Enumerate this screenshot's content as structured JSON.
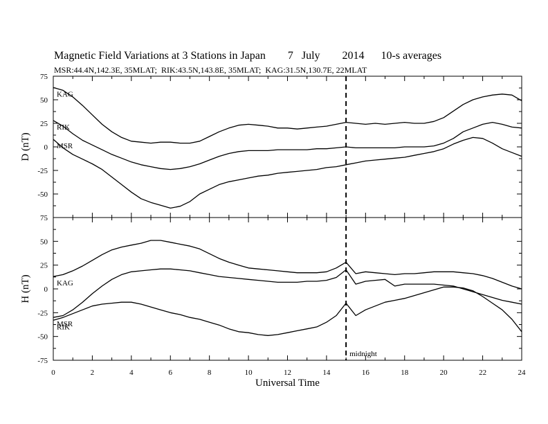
{
  "chart_data": {
    "type": "line",
    "title": "Magnetic Field Variations at 3 Stations in Japan        7   July        2014      10-s averages",
    "subtitle": "MSR:44.4N,142.3E, 35MLAT;  RIK:43.5N,143.8E, 35MLAT;  KAG:31.5N,130.7E, 22MLAT",
    "xlabel": "Universal Time",
    "xlim": [
      0,
      24
    ],
    "x_ticks": [
      "0",
      "2",
      "4",
      "6",
      "8",
      "10",
      "12",
      "14",
      "16",
      "18",
      "20",
      "22",
      "24"
    ],
    "x_tick_values": [
      0,
      2,
      4,
      6,
      8,
      10,
      12,
      14,
      16,
      18,
      20,
      22,
      24
    ],
    "annotation": {
      "text": "midnight",
      "x": 15
    },
    "grid": false,
    "panels": [
      {
        "ylabel": "D (nT)",
        "ylim": [
          -75,
          75
        ],
        "y_ticks": [
          "75",
          "50",
          "25",
          "0",
          "-25",
          "-50",
          "-75"
        ],
        "y_tick_values": [
          75,
          50,
          25,
          0,
          -25,
          -50,
          -75
        ],
        "series": [
          {
            "name": "KAG",
            "x": [
              0,
              0.5,
              1,
              1.5,
              2,
              2.5,
              3,
              3.5,
              4,
              4.5,
              5,
              5.5,
              6,
              6.5,
              7,
              7.5,
              8,
              8.5,
              9,
              9.5,
              10,
              10.5,
              11,
              11.5,
              12,
              12.5,
              13,
              13.5,
              14,
              14.5,
              15,
              15.5,
              16,
              16.5,
              17,
              17.5,
              18,
              18.5,
              19,
              19.5,
              20,
              20.5,
              21,
              21.5,
              22,
              22.5,
              23,
              23.5,
              24
            ],
            "y": [
              63,
              60,
              53,
              44,
              34,
              24,
              16,
              10,
              6,
              5,
              4,
              5,
              5,
              4,
              4,
              6,
              11,
              16,
              20,
              23,
              24,
              23,
              22,
              20,
              20,
              19,
              20,
              21,
              22,
              24,
              26,
              25,
              24,
              25,
              24,
              25,
              26,
              25,
              25,
              27,
              31,
              38,
              45,
              50,
              53,
              55,
              56,
              55,
              49
            ]
          },
          {
            "name": "RIK",
            "x": [
              0,
              0.5,
              1,
              1.5,
              2,
              2.5,
              3,
              3.5,
              4,
              4.5,
              5,
              5.5,
              6,
              6.5,
              7,
              7.5,
              8,
              8.5,
              9,
              9.5,
              10,
              10.5,
              11,
              11.5,
              12,
              12.5,
              13,
              13.5,
              14,
              14.5,
              15,
              15.5,
              16,
              16.5,
              17,
              17.5,
              18,
              18.5,
              19,
              19.5,
              20,
              20.5,
              21,
              21.5,
              22,
              22.5,
              23,
              23.5,
              24
            ],
            "y": [
              28,
              22,
              14,
              7,
              2,
              -3,
              -8,
              -12,
              -16,
              -19,
              -21,
              -23,
              -24,
              -23,
              -21,
              -18,
              -14,
              -10,
              -7,
              -5,
              -4,
              -4,
              -4,
              -3,
              -3,
              -3,
              -3,
              -2,
              -2,
              -1,
              0,
              -1,
              -1,
              -1,
              -1,
              -1,
              0,
              0,
              0,
              1,
              4,
              9,
              16,
              20,
              24,
              26,
              24,
              21,
              20
            ]
          },
          {
            "name": "MSR",
            "x": [
              0,
              0.5,
              1,
              1.5,
              2,
              2.5,
              3,
              3.5,
              4,
              4.5,
              5,
              5.5,
              6,
              6.5,
              7,
              7.5,
              8,
              8.5,
              9,
              9.5,
              10,
              10.5,
              11,
              11.5,
              12,
              12.5,
              13,
              13.5,
              14,
              14.5,
              15,
              15.5,
              16,
              16.5,
              17,
              17.5,
              18,
              18.5,
              19,
              19.5,
              20,
              20.5,
              21,
              21.5,
              22,
              22.5,
              23,
              23.5,
              24
            ],
            "y": [
              8,
              -1,
              -8,
              -13,
              -18,
              -24,
              -32,
              -40,
              -48,
              -55,
              -59,
              -62,
              -65,
              -63,
              -58,
              -50,
              -45,
              -40,
              -37,
              -35,
              -33,
              -31,
              -30,
              -28,
              -27,
              -26,
              -25,
              -24,
              -22,
              -21,
              -19,
              -17,
              -15,
              -14,
              -13,
              -12,
              -11,
              -9,
              -7,
              -5,
              -2,
              3,
              7,
              10,
              9,
              4,
              -2,
              -6,
              -10
            ]
          }
        ]
      },
      {
        "ylabel": "H (nT)",
        "ylim": [
          -75,
          75
        ],
        "y_ticks": [
          "75",
          "50",
          "25",
          "0",
          "-25",
          "-50",
          "-75"
        ],
        "y_tick_values": [
          75,
          50,
          25,
          0,
          -25,
          -50,
          -75
        ],
        "series": [
          {
            "name": "KAG",
            "x": [
              0,
              0.5,
              1,
              1.5,
              2,
              2.5,
              3,
              3.5,
              4,
              4.5,
              5,
              5.5,
              6,
              6.5,
              7,
              7.5,
              8,
              8.5,
              9,
              9.5,
              10,
              10.5,
              11,
              11.5,
              12,
              12.5,
              13,
              13.5,
              14,
              14.5,
              15,
              15.5,
              16,
              16.5,
              17,
              17.5,
              18,
              18.5,
              19,
              19.5,
              20,
              20.5,
              21,
              21.5,
              22,
              22.5,
              23,
              23.5,
              24
            ],
            "y": [
              13,
              15,
              19,
              24,
              30,
              36,
              41,
              44,
              46,
              48,
              51,
              51,
              49,
              47,
              45,
              42,
              37,
              32,
              28,
              25,
              22,
              21,
              20,
              19,
              18,
              17,
              17,
              17,
              18,
              22,
              28,
              16,
              18,
              17,
              16,
              15,
              16,
              16,
              17,
              18,
              18,
              18,
              17,
              16,
              14,
              11,
              7,
              3,
              0
            ]
          },
          {
            "name": "MSR",
            "x": [
              0,
              0.5,
              1,
              1.5,
              2,
              2.5,
              3,
              3.5,
              4,
              4.5,
              5,
              5.5,
              6,
              6.5,
              7,
              7.5,
              8,
              8.5,
              9,
              9.5,
              10,
              10.5,
              11,
              11.5,
              12,
              12.5,
              13,
              13.5,
              14,
              14.5,
              15,
              15.5,
              16,
              16.5,
              17,
              17.5,
              18,
              18.5,
              19,
              19.5,
              20,
              20.5,
              21,
              21.5,
              22,
              22.5,
              23,
              23.5,
              24
            ],
            "y": [
              -30,
              -28,
              -22,
              -14,
              -5,
              3,
              10,
              15,
              18,
              19,
              20,
              21,
              21,
              20,
              19,
              17,
              15,
              13,
              12,
              11,
              10,
              9,
              8,
              7,
              7,
              7,
              8,
              8,
              9,
              12,
              20,
              5,
              8,
              9,
              10,
              3,
              5,
              5,
              5,
              5,
              4,
              3,
              0,
              -3,
              -6,
              -9,
              -12,
              -14,
              -16
            ]
          },
          {
            "name": "RIK",
            "x": [
              0,
              0.5,
              1,
              1.5,
              2,
              2.5,
              3,
              3.5,
              4,
              4.5,
              5,
              5.5,
              6,
              6.5,
              7,
              7.5,
              8,
              8.5,
              9,
              9.5,
              10,
              10.5,
              11,
              11.5,
              12,
              12.5,
              13,
              13.5,
              14,
              14.5,
              15,
              15.5,
              16,
              16.5,
              17,
              17.5,
              18,
              18.5,
              19,
              19.5,
              20,
              20.5,
              21,
              21.5,
              22,
              22.5,
              23,
              23.5,
              24
            ],
            "y": [
              -33,
              -30,
              -26,
              -22,
              -18,
              -16,
              -15,
              -14,
              -14,
              -16,
              -19,
              -22,
              -25,
              -27,
              -30,
              -32,
              -35,
              -38,
              -42,
              -45,
              -46,
              -48,
              -49,
              -48,
              -46,
              -44,
              -42,
              -40,
              -35,
              -28,
              -15,
              -28,
              -22,
              -18,
              -14,
              -12,
              -10,
              -7,
              -4,
              -1,
              2,
              2,
              1,
              -2,
              -8,
              -15,
              -22,
              -32,
              -45
            ]
          }
        ]
      }
    ]
  }
}
